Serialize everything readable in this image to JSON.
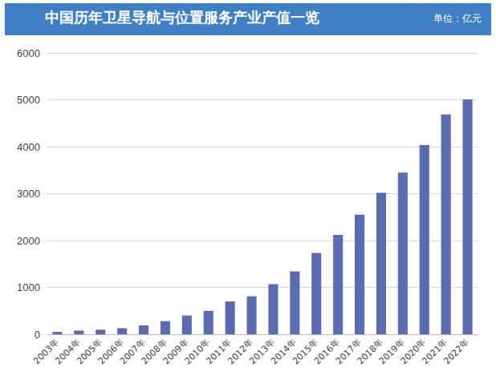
{
  "chart_data": {
    "type": "bar",
    "title": "中国历年卫星导航与位置服务产业产值一览",
    "subtitle": "单位：亿元",
    "categories": [
      "2003年",
      "2004年",
      "2005年",
      "2006年",
      "2007年",
      "2008年",
      "2009年",
      "2010年",
      "2011年",
      "2012年",
      "2013年",
      "2014年",
      "2015年",
      "2016年",
      "2017年",
      "2018年",
      "2019年",
      "2020年",
      "2021年",
      "2022年"
    ],
    "values": [
      50,
      80,
      100,
      130,
      190,
      280,
      400,
      500,
      700,
      810,
      1070,
      1340,
      1735,
      2118,
      2550,
      3016,
      3450,
      4033,
      4690,
      5007
    ],
    "color": "#5a6bb0",
    "ylim": [
      0,
      6000
    ],
    "yticks": [
      0,
      1000,
      2000,
      3000,
      4000,
      5000,
      6000
    ],
    "grid": true
  }
}
